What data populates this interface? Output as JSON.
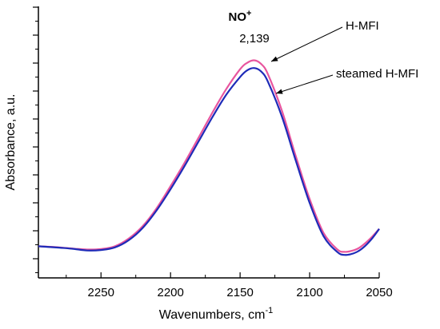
{
  "chart_data": {
    "type": "line",
    "title": "",
    "xlabel": "Wavenumbers, cm",
    "xlabel_superscript": "-1",
    "ylabel": "Absorbance, a.u.",
    "x_reversed": true,
    "xlim": [
      2295,
      2050
    ],
    "ylim": [
      0,
      1
    ],
    "x_ticks": [
      2250,
      2200,
      2150,
      2100,
      2050
    ],
    "y_tick_labels_shown": false,
    "grid": false,
    "peak_annotation": {
      "species": "NO",
      "charge": "+",
      "position": "2,139"
    },
    "series": [
      {
        "name": "H-MFI",
        "color": "#e8559e",
        "x": [
          2295,
          2280,
          2270,
          2260,
          2250,
          2240,
          2230,
          2220,
          2210,
          2200,
          2190,
          2180,
          2170,
          2160,
          2150,
          2145,
          2140,
          2135,
          2130,
          2120,
          2110,
          2100,
          2090,
          2080,
          2075,
          2070,
          2065,
          2060,
          2055,
          2050
        ],
        "y": [
          0.094,
          0.089,
          0.084,
          0.08,
          0.082,
          0.094,
          0.127,
          0.18,
          0.256,
          0.35,
          0.449,
          0.555,
          0.662,
          0.763,
          0.848,
          0.875,
          0.886,
          0.871,
          0.827,
          0.672,
          0.478,
          0.295,
          0.151,
          0.08,
          0.07,
          0.074,
          0.085,
          0.107,
          0.135,
          0.168
        ]
      },
      {
        "name": "steamed H-MFI",
        "color": "#1e2bb8",
        "x": [
          2295,
          2280,
          2270,
          2260,
          2250,
          2240,
          2230,
          2220,
          2210,
          2200,
          2190,
          2180,
          2170,
          2160,
          2150,
          2145,
          2140,
          2135,
          2130,
          2120,
          2110,
          2100,
          2090,
          2080,
          2075,
          2070,
          2065,
          2060,
          2055,
          2050
        ],
        "y": [
          0.094,
          0.088,
          0.083,
          0.076,
          0.078,
          0.089,
          0.12,
          0.172,
          0.247,
          0.337,
          0.435,
          0.539,
          0.643,
          0.739,
          0.815,
          0.843,
          0.853,
          0.839,
          0.795,
          0.647,
          0.459,
          0.278,
          0.137,
          0.069,
          0.057,
          0.061,
          0.073,
          0.096,
          0.128,
          0.168
        ]
      }
    ],
    "annotations": [
      "H-MFI",
      "steamed H-MFI"
    ]
  }
}
